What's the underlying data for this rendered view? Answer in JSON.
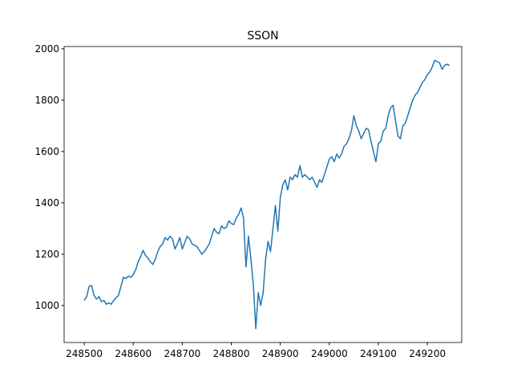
{
  "chart_data": {
    "type": "line",
    "title": "SSON",
    "x": [
      248500,
      248505,
      248510,
      248515,
      248520,
      248525,
      248530,
      248535,
      248540,
      248545,
      248550,
      248555,
      248560,
      248565,
      248570,
      248575,
      248580,
      248585,
      248590,
      248595,
      248600,
      248605,
      248610,
      248615,
      248620,
      248625,
      248630,
      248635,
      248640,
      248645,
      248650,
      248655,
      248660,
      248665,
      248670,
      248675,
      248680,
      248685,
      248690,
      248695,
      248700,
      248705,
      248710,
      248715,
      248720,
      248725,
      248730,
      248735,
      248740,
      248745,
      248750,
      248755,
      248760,
      248765,
      248770,
      248775,
      248780,
      248785,
      248790,
      248795,
      248800,
      248805,
      248810,
      248815,
      248820,
      248825,
      248830,
      248835,
      248840,
      248845,
      248850,
      248855,
      248860,
      248865,
      248870,
      248875,
      248880,
      248885,
      248890,
      248895,
      248900,
      248905,
      248910,
      248915,
      248920,
      248925,
      248930,
      248935,
      248940,
      248945,
      248950,
      248955,
      248960,
      248965,
      248970,
      248975,
      248980,
      248985,
      248990,
      248995,
      249000,
      249005,
      249010,
      249015,
      249020,
      249025,
      249030,
      249035,
      249040,
      249045,
      249050,
      249055,
      249060,
      249065,
      249070,
      249075,
      249080,
      249085,
      249090,
      249095,
      249100,
      249105,
      249110,
      249115,
      249120,
      249125,
      249130,
      249135,
      249140,
      249145,
      249150,
      249155,
      249160,
      249165,
      249170,
      249175,
      249180,
      249185,
      249190,
      249195,
      249200,
      249205,
      249210,
      249215,
      249220,
      249225,
      249230,
      249235,
      249240,
      249245
    ],
    "series": [
      {
        "name": "SSON",
        "color": "#1f77b4",
        "values": [
          1020,
          1035,
          1075,
          1078,
          1040,
          1025,
          1035,
          1015,
          1020,
          1005,
          1010,
          1005,
          1020,
          1030,
          1040,
          1075,
          1110,
          1105,
          1115,
          1110,
          1120,
          1140,
          1170,
          1190,
          1215,
          1195,
          1185,
          1170,
          1160,
          1180,
          1210,
          1230,
          1240,
          1265,
          1255,
          1270,
          1260,
          1220,
          1240,
          1265,
          1220,
          1245,
          1270,
          1260,
          1240,
          1235,
          1230,
          1215,
          1200,
          1210,
          1225,
          1240,
          1270,
          1300,
          1285,
          1280,
          1310,
          1300,
          1305,
          1330,
          1320,
          1315,
          1340,
          1355,
          1380,
          1340,
          1150,
          1270,
          1180,
          1080,
          910,
          1050,
          1000,
          1050,
          1180,
          1250,
          1210,
          1300,
          1390,
          1290,
          1420,
          1470,
          1490,
          1450,
          1500,
          1490,
          1510,
          1500,
          1545,
          1500,
          1510,
          1500,
          1490,
          1500,
          1480,
          1460,
          1490,
          1480,
          1510,
          1540,
          1570,
          1580,
          1560,
          1590,
          1575,
          1590,
          1620,
          1630,
          1650,
          1680,
          1740,
          1700,
          1680,
          1650,
          1670,
          1690,
          1685,
          1640,
          1600,
          1560,
          1630,
          1640,
          1680,
          1690,
          1740,
          1770,
          1780,
          1720,
          1660,
          1650,
          1700,
          1710,
          1740,
          1770,
          1800,
          1820,
          1830,
          1850,
          1870,
          1880,
          1900,
          1910,
          1930,
          1955,
          1950,
          1945,
          1920,
          1935,
          1940,
          1935
        ]
      }
    ],
    "xlim": [
      248459,
      249270
    ],
    "ylim": [
      856,
      2009
    ],
    "xticks": [
      248500,
      248600,
      248700,
      248800,
      248900,
      249000,
      249100,
      249200
    ],
    "yticks": [
      1000,
      1200,
      1400,
      1600,
      1800,
      2000
    ]
  }
}
